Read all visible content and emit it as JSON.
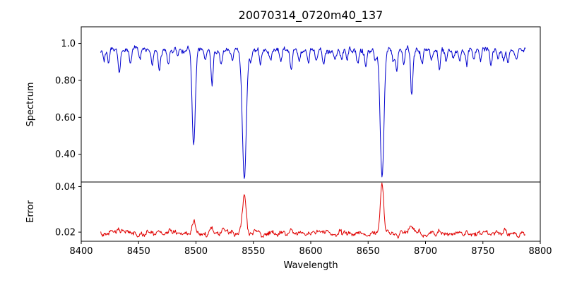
{
  "figure": {
    "background": "#ffffff",
    "spine_color": "#000000"
  },
  "chart_data": {
    "type": "line",
    "title": "20070314_0720m40_137",
    "xlabel": "Wavelength",
    "xlim": [
      8400,
      8800
    ],
    "xticks": [
      8400,
      8450,
      8500,
      8550,
      8600,
      8650,
      8700,
      8750,
      8800
    ],
    "x_start": 8417,
    "x_end": 8787,
    "x_step": 0.5,
    "noise_seed": 7,
    "panels": [
      {
        "name": "spectrum",
        "ylabel": "Spectrum",
        "ylim": [
          0.25,
          1.09
        ],
        "yticks": [
          0.4,
          0.6,
          0.8,
          1.0
        ],
        "color": "#0000cd",
        "continuum": 0.965,
        "noise_amp_broad": 0.06,
        "noise_amp_fine": 0.016,
        "major_absorption_lines": [
          {
            "center": 8498.02,
            "depth": 0.52,
            "sigma": 1.4
          },
          {
            "center": 8542.09,
            "depth": 0.7,
            "sigma": 1.7
          },
          {
            "center": 8662.14,
            "depth": 0.69,
            "sigma": 1.6
          }
        ],
        "weak_absorption_lines": [
          [
            8420,
            0.05
          ],
          [
            8424,
            0.07
          ],
          [
            8433,
            0.11
          ],
          [
            8443,
            0.08
          ],
          [
            8451,
            0.05
          ],
          [
            8462,
            0.09
          ],
          [
            8468,
            0.13
          ],
          [
            8476,
            0.06
          ],
          [
            8484,
            0.05
          ],
          [
            8508,
            0.06
          ],
          [
            8514,
            0.18
          ],
          [
            8522,
            0.08
          ],
          [
            8532,
            0.06
          ],
          [
            8548,
            0.05
          ],
          [
            8556,
            0.08
          ],
          [
            8565,
            0.05
          ],
          [
            8574,
            0.06
          ],
          [
            8583,
            0.1
          ],
          [
            8590,
            0.05
          ],
          [
            8598,
            0.07
          ],
          [
            8605,
            0.05
          ],
          [
            8611,
            0.08
          ],
          [
            8621,
            0.05
          ],
          [
            8627,
            0.06
          ],
          [
            8632,
            0.05
          ],
          [
            8641,
            0.07
          ],
          [
            8648,
            0.09
          ],
          [
            8656,
            0.05
          ],
          [
            8672,
            0.08
          ],
          [
            8675,
            0.1
          ],
          [
            8681,
            0.07
          ],
          [
            8688,
            0.25
          ],
          [
            8697,
            0.07
          ],
          [
            8705,
            0.05
          ],
          [
            8712,
            0.1
          ],
          [
            8718,
            0.06
          ],
          [
            8724,
            0.05
          ],
          [
            8730,
            0.06
          ],
          [
            8736,
            0.08
          ],
          [
            8742,
            0.05
          ],
          [
            8748,
            0.06
          ],
          [
            8757,
            0.09
          ],
          [
            8763,
            0.05
          ],
          [
            8768,
            0.06
          ],
          [
            8772,
            0.07
          ],
          [
            8779,
            0.06
          ]
        ],
        "weak_line_sigma": 0.9
      },
      {
        "name": "error",
        "ylabel": "Error",
        "ylim": [
          0.016,
          0.042
        ],
        "yticks": [
          0.02,
          0.04
        ],
        "color": "#e00000",
        "baseline": 0.0196,
        "noise_amp_broad": 0.006,
        "noise_amp_fine": 0.0012,
        "peaks": [
          {
            "center": 8498.02,
            "height": 0.006,
            "sigma": 1.5
          },
          {
            "center": 8542.09,
            "height": 0.015,
            "sigma": 1.6
          },
          {
            "center": 8662.14,
            "height": 0.0215,
            "sigma": 1.4
          },
          {
            "center": 8688.0,
            "height": 0.003,
            "sigma": 1.2
          },
          {
            "center": 8514.0,
            "height": 0.0013,
            "sigma": 1.2
          },
          {
            "center": 8583.0,
            "height": 0.0008,
            "sigma": 1.0
          },
          {
            "center": 8433.0,
            "height": 0.001,
            "sigma": 1.0
          },
          {
            "center": 8712.0,
            "height": 0.0008,
            "sigma": 1.0
          }
        ]
      }
    ]
  }
}
